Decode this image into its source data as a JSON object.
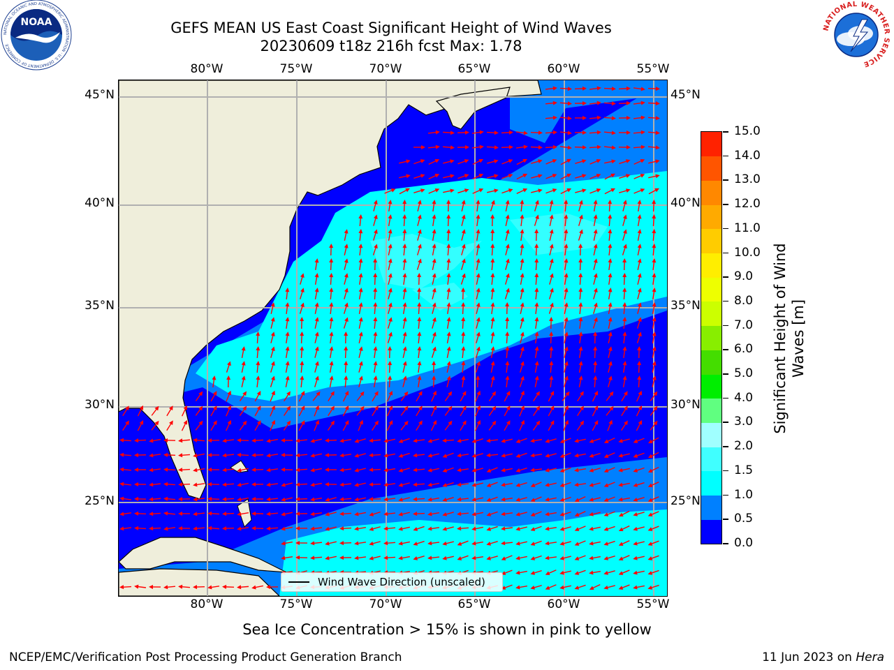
{
  "title": {
    "line1": "GEFS MEAN US East Coast Significant Height of Wind Waves",
    "line2": "20230609 t18z 216h fcst   Max: 1.78"
  },
  "map": {
    "lon_ticks_top": [
      "80°W",
      "75°W",
      "70°W",
      "65°W",
      "60°W",
      "55°W"
    ],
    "lon_ticks_bottom": [
      "80°W",
      "75°W",
      "70°W",
      "65°W",
      "60°W",
      "55°W"
    ],
    "lat_ticks_left": [
      "45°N",
      "40°N",
      "35°N",
      "30°N",
      "25°N"
    ],
    "lat_ticks_right": [
      "45°N",
      "40°N",
      "35°N",
      "30°N",
      "25°N"
    ],
    "legend_label": "Wind Wave Direction (unscaled)",
    "colors": {
      "land": "#efeedb",
      "arrows": "#ff0000",
      "gridlines": "#b0b0b0",
      "coastline": "#000000"
    }
  },
  "colorbar": {
    "label": "Significant Height of Wind Waves [m]",
    "ticks": [
      "0.0",
      "0.5",
      "1.0",
      "1.5",
      "2.0",
      "3.0",
      "4.0",
      "5.0",
      "6.0",
      "7.0",
      "8.0",
      "9.0",
      "10.0",
      "11.0",
      "12.0",
      "13.0",
      "14.0",
      "15.0"
    ],
    "colors": [
      "#0000ff",
      "#0080ff",
      "#00ffff",
      "#40ffff",
      "#a0ffff",
      "#60ff80",
      "#00ee00",
      "#44dd00",
      "#88ee00",
      "#ccff00",
      "#eeff00",
      "#ffee00",
      "#ffcc00",
      "#ffaa00",
      "#ff8800",
      "#ff5500",
      "#ff2200"
    ]
  },
  "subtitle": "Sea Ice Concentration > 15% is shown in pink to yellow",
  "footer": {
    "left": "NCEP/EMC/Verification Post Processing Product Generation Branch",
    "right_date": "11 Jun 2023 on ",
    "right_machine": "Hera"
  },
  "logos": {
    "noaa_text": "NOAA",
    "noaa_ring": "NATIONAL OCEANIC AND ATMOSPHERIC ADMINISTRATION · U.S. DEPARTMENT OF COMMERCE",
    "nws_ring": "NATIONAL WEATHER SERVICE"
  }
}
